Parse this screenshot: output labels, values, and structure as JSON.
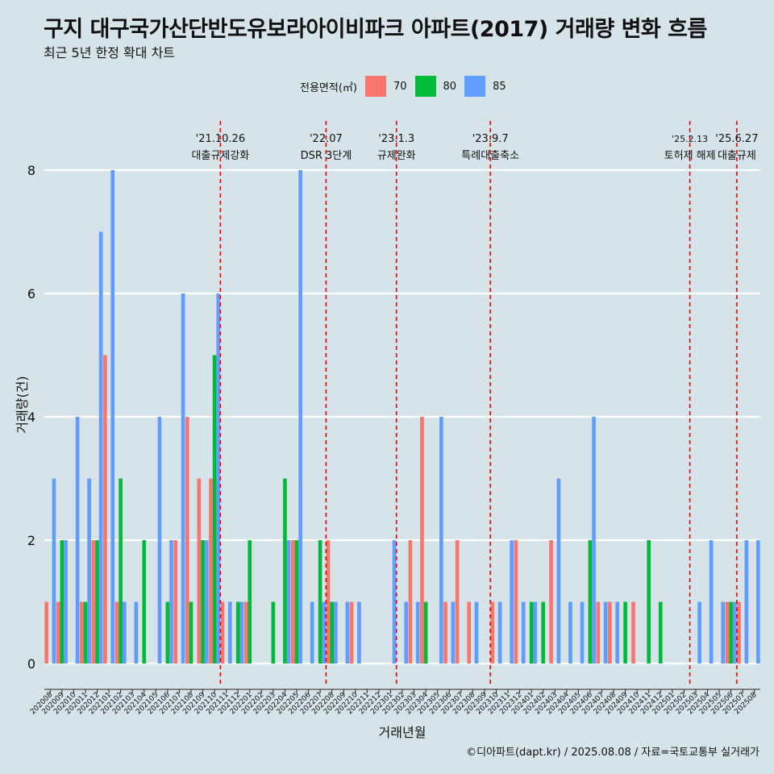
{
  "title": "구지 대구국가산단반도유보라아이비파크 아파트(2017) 거래량 변화 흐름",
  "subtitle": "최근 5년 한정 확대 차트",
  "caption": "©디아파트(dapt.kr) / 2025.08.08 / 자료=국토교통부 실거래가",
  "legend": {
    "title": "전용면적(㎡)",
    "items": [
      {
        "label": "70",
        "color": "#f8766d"
      },
      {
        "label": "80",
        "color": "#00ba38"
      },
      {
        "label": "85",
        "color": "#619cff"
      }
    ]
  },
  "chart_data": {
    "type": "bar",
    "xlabel": "거래년월",
    "ylabel": "거래량(건)",
    "ylim": [
      0,
      8
    ],
    "yticks": [
      0,
      2,
      4,
      6,
      8
    ],
    "grid": true,
    "legend_position": "top",
    "categories": [
      "202008",
      "202009",
      "202010",
      "202011",
      "202012",
      "202101",
      "202102",
      "202103",
      "202104",
      "202105",
      "202106",
      "202107",
      "202108",
      "202109",
      "202110",
      "202111",
      "202112",
      "202201",
      "202202",
      "202203",
      "202204",
      "202205",
      "202206",
      "202207",
      "202208",
      "202209",
      "202210",
      "202211",
      "202212",
      "202301",
      "202302",
      "202303",
      "202304",
      "202305",
      "202306",
      "202307",
      "202308",
      "202309",
      "202310",
      "202311",
      "202312",
      "202401",
      "202402",
      "202403",
      "202404",
      "202405",
      "202406",
      "202407",
      "202408",
      "202409",
      "202410",
      "202411",
      "202412",
      "202501",
      "202502",
      "202503",
      "202504",
      "202505",
      "202506",
      "202507",
      "202508"
    ],
    "series": [
      {
        "name": "70",
        "color": "#f8766d",
        "values": [
          1,
          1,
          0,
          1,
          2,
          5,
          1,
          0,
          0,
          0,
          0,
          2,
          4,
          3,
          3,
          1,
          0,
          1,
          0,
          0,
          0,
          2,
          0,
          0,
          2,
          0,
          1,
          0,
          0,
          0,
          0,
          2,
          4,
          0,
          1,
          2,
          1,
          0,
          1,
          0,
          2,
          0,
          0,
          2,
          0,
          0,
          0,
          1,
          1,
          0,
          1,
          0,
          0,
          0,
          0,
          0,
          0,
          0,
          1,
          1,
          0
        ]
      },
      {
        "name": "80",
        "color": "#00ba38",
        "values": [
          0,
          2,
          0,
          1,
          2,
          0,
          3,
          0,
          2,
          0,
          1,
          0,
          1,
          2,
          5,
          0,
          1,
          2,
          0,
          1,
          3,
          2,
          0,
          2,
          1,
          0,
          0,
          0,
          0,
          0,
          0,
          0,
          1,
          0,
          0,
          0,
          0,
          0,
          0,
          0,
          0,
          1,
          1,
          0,
          0,
          0,
          2,
          0,
          0,
          1,
          0,
          2,
          1,
          0,
          0,
          0,
          0,
          0,
          1,
          0,
          0
        ]
      },
      {
        "name": "85",
        "color": "#619cff",
        "values": [
          3,
          2,
          4,
          3,
          7,
          8,
          1,
          1,
          0,
          4,
          2,
          6,
          0,
          2,
          6,
          1,
          1,
          0,
          0,
          0,
          2,
          8,
          1,
          1,
          1,
          1,
          1,
          0,
          0,
          2,
          1,
          1,
          0,
          4,
          1,
          0,
          1,
          0,
          1,
          2,
          1,
          1,
          0,
          3,
          1,
          1,
          4,
          1,
          1,
          0,
          0,
          0,
          0,
          0,
          0,
          1,
          2,
          1,
          1,
          2,
          2
        ]
      }
    ],
    "annotations": [
      {
        "date": "'21.10.26",
        "text": "대출규제강화",
        "after": "202110"
      },
      {
        "date": "'22.07",
        "text": "DSR 3단계",
        "after": "202207"
      },
      {
        "date": "'23.1.3",
        "text": "규제완화",
        "after": "202301"
      },
      {
        "date": "'23.9.7",
        "text": "특례대출축소",
        "after": "202309"
      },
      {
        "date": "'25.2.13",
        "text": "토허제 해제",
        "after": "202502"
      },
      {
        "date": "'25.6.27",
        "text": "대출규제",
        "after": "202506"
      }
    ]
  }
}
